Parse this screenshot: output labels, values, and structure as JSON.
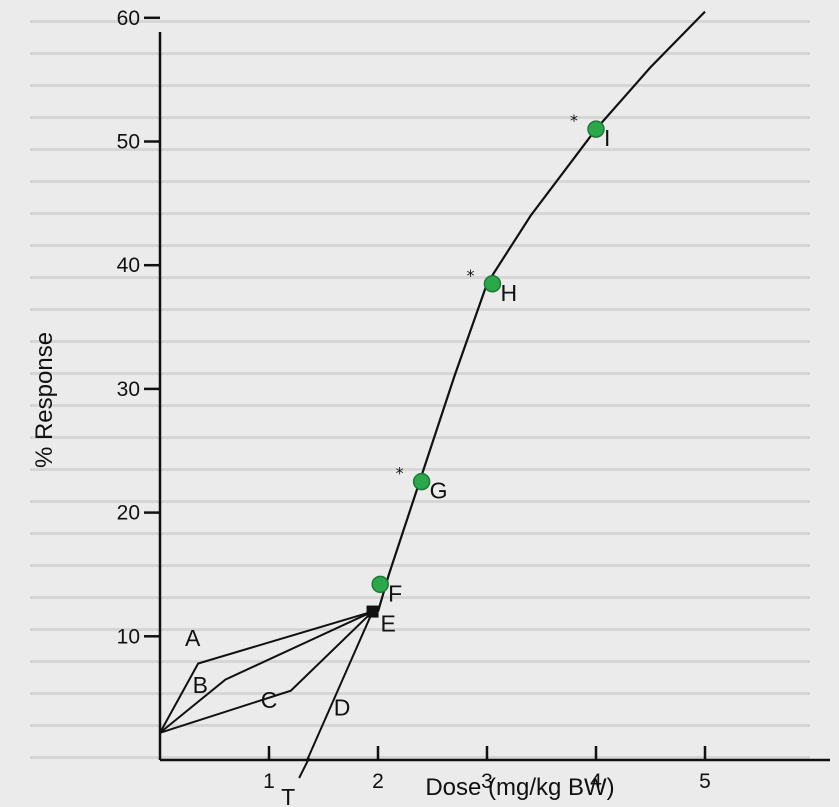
{
  "chart_data": {
    "type": "line",
    "xlabel": "Dose (mg/kg BW)",
    "ylabel": "% Response",
    "xlim": [
      0,
      5
    ],
    "ylim": [
      0,
      60
    ],
    "x_ticks": [
      1,
      2,
      3,
      4,
      5
    ],
    "y_ticks": [
      10,
      20,
      30,
      40,
      50,
      60
    ],
    "grid": false,
    "legend": "none",
    "curve": [
      {
        "x": 2,
        "y": 12
      },
      {
        "x": 2.1,
        "y": 15
      },
      {
        "x": 2.4,
        "y": 23
      },
      {
        "x": 2.7,
        "y": 31
      },
      {
        "x": 3.0,
        "y": 38.5
      },
      {
        "x": 3.4,
        "y": 44
      },
      {
        "x": 4.0,
        "y": 51
      },
      {
        "x": 4.5,
        "y": 56
      },
      {
        "x": 5.0,
        "y": 60.5
      }
    ],
    "points": [
      {
        "label": "F",
        "x": 2.02,
        "y": 14.2,
        "asterisk": false
      },
      {
        "label": "G",
        "x": 2.4,
        "y": 22.5,
        "asterisk": true
      },
      {
        "label": "H",
        "x": 3.05,
        "y": 38.5,
        "asterisk": true
      },
      {
        "label": "I",
        "x": 4.0,
        "y": 51.0,
        "asterisk": true
      }
    ],
    "origin_point": {
      "label": "E",
      "x": 1.95,
      "y": 12.0
    },
    "rays": [
      {
        "label": "A",
        "from": [
          0,
          2.2
        ],
        "to": [
          1.95,
          12.0
        ]
      },
      {
        "label": "B",
        "from": [
          0,
          2.2
        ],
        "to": [
          1.95,
          12.0
        ]
      },
      {
        "label": "C",
        "from": [
          0,
          2.2
        ],
        "to": [
          1.95,
          12.0
        ]
      },
      {
        "label": "D",
        "from": [
          1.35,
          0
        ],
        "to": [
          1.95,
          12.0
        ]
      }
    ],
    "marker_T": {
      "label": "T",
      "x": 1.35,
      "y": 0
    },
    "colors": {
      "marker": "#2aa84a",
      "line": "#111111",
      "background": "#ebebeb"
    }
  }
}
